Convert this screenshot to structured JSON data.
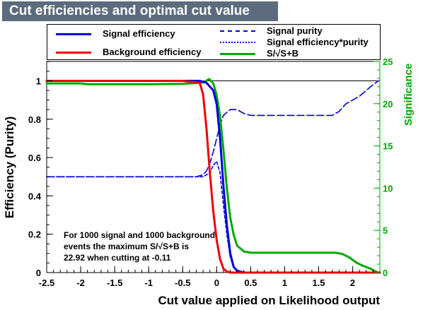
{
  "title": "Cut efficiencies and optimal cut value",
  "note": [
    "For 1000 signal and 1000 background",
    "events the maximum S/√S+B is",
    "22.92 when cutting at -0.11"
  ],
  "colors": {
    "signal": "#0000dd",
    "background": "#ee0000",
    "significance": "#00aa00",
    "title_bg": "#5c6b7e"
  },
  "chart_data": {
    "type": "line",
    "title": "Cut efficiencies and optimal cut value",
    "xlabel": "Cut value applied on Likelihood output",
    "ylabel": "Efficiency (Purity)",
    "y2label": "Significance",
    "xlim": [
      -2.5,
      2.4
    ],
    "ylim": [
      0,
      1.1
    ],
    "y2lim": [
      0,
      25
    ],
    "x_ticks": [
      "-2.5",
      "-2",
      "-1.5",
      "-1",
      "-0.5",
      "0",
      "0.5",
      "1",
      "1.5",
      "2"
    ],
    "y_ticks": [
      "0",
      "0.2",
      "0.4",
      "0.6",
      "0.8",
      "1"
    ],
    "y2_ticks": [
      "0",
      "5",
      "10",
      "15",
      "20",
      "25"
    ],
    "legend_position": "top",
    "series": [
      {
        "name": "Signal efficiency",
        "axis": "left",
        "color": "#0000dd",
        "style": "solid",
        "points": [
          [
            -2.5,
            1.0
          ],
          [
            -2.0,
            1.0
          ],
          [
            -1.0,
            1.0
          ],
          [
            -0.5,
            1.0
          ],
          [
            -0.25,
            1.0
          ],
          [
            -0.15,
            0.99
          ],
          [
            -0.05,
            0.95
          ],
          [
            0.0,
            0.88
          ],
          [
            0.05,
            0.7
          ],
          [
            0.1,
            0.45
          ],
          [
            0.15,
            0.25
          ],
          [
            0.2,
            0.1
          ],
          [
            0.25,
            0.03
          ],
          [
            0.3,
            0.01
          ],
          [
            0.4,
            0.0
          ],
          [
            1.0,
            0.0
          ],
          [
            2.4,
            0.0
          ]
        ]
      },
      {
        "name": "Background efficiency",
        "axis": "left",
        "color": "#ee0000",
        "style": "solid",
        "points": [
          [
            -2.5,
            1.0
          ],
          [
            -2.0,
            1.0
          ],
          [
            -1.0,
            1.0
          ],
          [
            -0.5,
            1.0
          ],
          [
            -0.25,
            0.99
          ],
          [
            -0.2,
            0.93
          ],
          [
            -0.15,
            0.75
          ],
          [
            -0.1,
            0.52
          ],
          [
            -0.05,
            0.32
          ],
          [
            0.0,
            0.17
          ],
          [
            0.05,
            0.07
          ],
          [
            0.1,
            0.02
          ],
          [
            0.15,
            0.005
          ],
          [
            0.2,
            0.0
          ],
          [
            2.4,
            0.0
          ]
        ]
      },
      {
        "name": "Signal purity",
        "axis": "left",
        "color": "#0000dd",
        "style": "longdash",
        "points": [
          [
            -2.5,
            0.5
          ],
          [
            -1.0,
            0.5
          ],
          [
            -0.3,
            0.5
          ],
          [
            -0.2,
            0.51
          ],
          [
            -0.15,
            0.53
          ],
          [
            -0.1,
            0.57
          ],
          [
            -0.05,
            0.63
          ],
          [
            0.0,
            0.7
          ],
          [
            0.05,
            0.77
          ],
          [
            0.1,
            0.82
          ],
          [
            0.2,
            0.85
          ],
          [
            0.3,
            0.85
          ],
          [
            0.4,
            0.83
          ],
          [
            0.5,
            0.82
          ],
          [
            1.0,
            0.82
          ],
          [
            1.5,
            0.82
          ],
          [
            1.7,
            0.82
          ],
          [
            1.8,
            0.84
          ],
          [
            1.9,
            0.88
          ],
          [
            2.0,
            0.9
          ],
          [
            2.1,
            0.92
          ],
          [
            2.2,
            0.95
          ],
          [
            2.3,
            0.98
          ],
          [
            2.38,
            1.0
          ]
        ]
      },
      {
        "name": "Signal efficiency*purity",
        "axis": "left",
        "color": "#0000dd",
        "style": "shortdash",
        "points": [
          [
            -2.5,
            0.5
          ],
          [
            -1.0,
            0.5
          ],
          [
            -0.3,
            0.5
          ],
          [
            -0.2,
            0.5
          ],
          [
            -0.1,
            0.52
          ],
          [
            -0.05,
            0.56
          ],
          [
            0.0,
            0.58
          ],
          [
            0.05,
            0.52
          ],
          [
            0.1,
            0.35
          ],
          [
            0.15,
            0.2
          ],
          [
            0.2,
            0.08
          ],
          [
            0.25,
            0.025
          ],
          [
            0.3,
            0.01
          ],
          [
            0.4,
            0.0
          ],
          [
            2.4,
            0.0
          ]
        ]
      },
      {
        "name": "S/√S+B",
        "axis": "right",
        "color": "#00aa00",
        "style": "solid",
        "points": [
          [
            -2.5,
            22.4
          ],
          [
            -2.0,
            22.4
          ],
          [
            -1.9,
            22.3
          ],
          [
            -1.5,
            22.3
          ],
          [
            -1.0,
            22.3
          ],
          [
            -0.5,
            22.35
          ],
          [
            -0.2,
            22.5
          ],
          [
            -0.11,
            22.92
          ],
          [
            -0.05,
            22.4
          ],
          [
            0.0,
            21.0
          ],
          [
            0.05,
            18.5
          ],
          [
            0.1,
            14.5
          ],
          [
            0.15,
            10.0
          ],
          [
            0.2,
            6.5
          ],
          [
            0.25,
            4.5
          ],
          [
            0.3,
            3.2
          ],
          [
            0.4,
            2.5
          ],
          [
            0.5,
            2.35
          ],
          [
            1.0,
            2.35
          ],
          [
            1.5,
            2.35
          ],
          [
            1.75,
            2.35
          ],
          [
            1.85,
            2.2
          ],
          [
            1.95,
            1.8
          ],
          [
            2.05,
            1.2
          ],
          [
            2.15,
            0.8
          ],
          [
            2.25,
            0.5
          ],
          [
            2.35,
            0.1
          ]
        ]
      }
    ]
  }
}
